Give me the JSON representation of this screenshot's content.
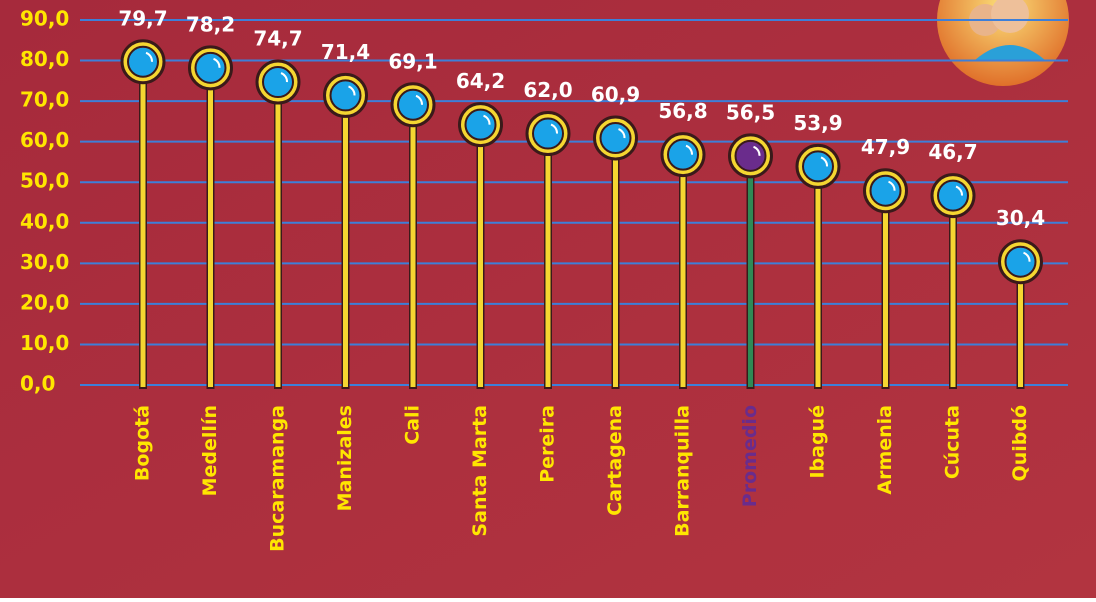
{
  "chart_data": {
    "type": "lollipop",
    "categories": [
      "Bogotá",
      "Medellín",
      "Bucaramanga",
      "Manizales",
      "Cali",
      "Santa Marta",
      "Pereira",
      "Cartagena",
      "Barranquilla",
      "Promedio",
      "Ibagué",
      "Armenia",
      "Cúcuta",
      "Quibdó"
    ],
    "values": [
      79.7,
      78.2,
      74.7,
      71.4,
      69.1,
      64.2,
      62.0,
      60.9,
      56.8,
      56.5,
      53.9,
      47.9,
      46.7,
      30.4
    ],
    "value_labels": [
      "79,7",
      "78,2",
      "74,7",
      "71,4",
      "69,1",
      "64,2",
      "62,0",
      "60,9",
      "56,8",
      "56,5",
      "53,9",
      "47,9",
      "46,7",
      "30,4"
    ],
    "colors": [
      "#1aa3e8",
      "#1aa3e8",
      "#1aa3e8",
      "#1aa3e8",
      "#1aa3e8",
      "#1aa3e8",
      "#1aa3e8",
      "#1aa3e8",
      "#1aa3e8",
      "#6a2c8c",
      "#1aa3e8",
      "#1aa3e8",
      "#1aa3e8",
      "#1aa3e8"
    ],
    "ylim": [
      0,
      90
    ],
    "yticks": [
      {
        "value": 0,
        "label": "0,0"
      },
      {
        "value": 10,
        "label": "10,0"
      },
      {
        "value": 20,
        "label": "20,0"
      },
      {
        "value": 30,
        "label": "30,0"
      },
      {
        "value": 40,
        "label": "40,0"
      },
      {
        "value": 50,
        "label": "50,0"
      },
      {
        "value": 60,
        "label": "60,0"
      },
      {
        "value": 70,
        "label": "70,0"
      },
      {
        "value": 80,
        "label": "80,0"
      },
      {
        "value": 90,
        "label": "90,0"
      }
    ],
    "grid": true
  }
}
